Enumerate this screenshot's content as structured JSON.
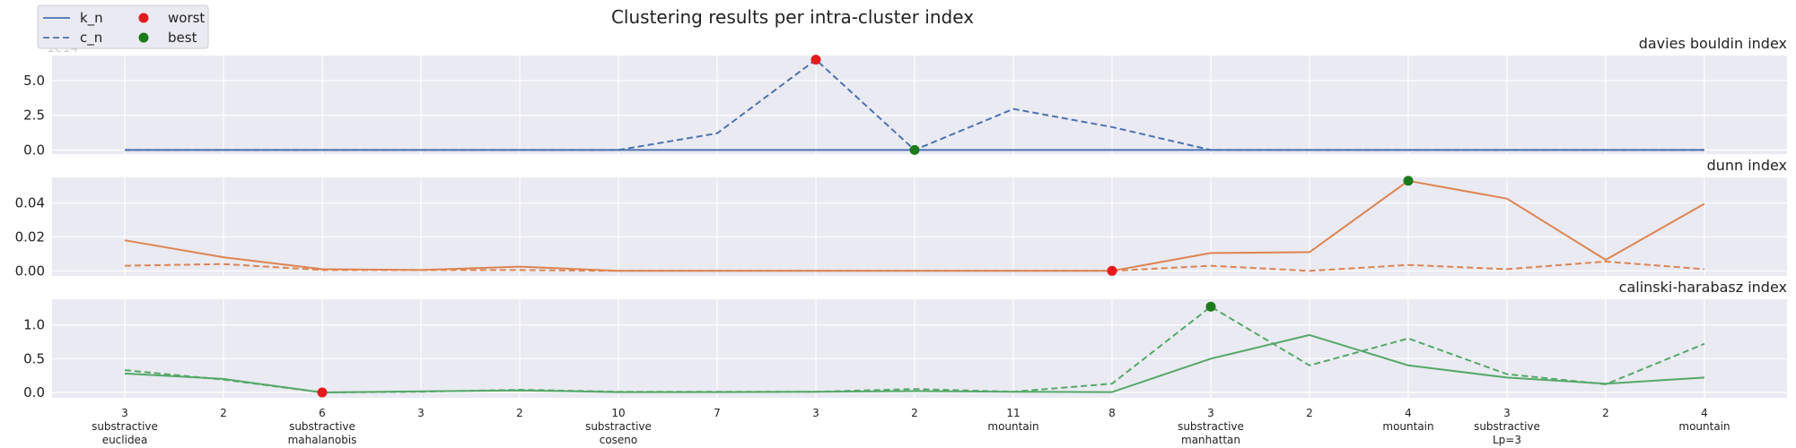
{
  "chart_data": {
    "type": "line",
    "title": "Clustering results per intra-cluster index",
    "legend": {
      "placement": "top-left",
      "entries": [
        {
          "label": "k_n",
          "style": "solid line"
        },
        {
          "label": "c_n",
          "style": "dashed line"
        },
        {
          "label": "worst",
          "style": "red dot",
          "color": "#e41a1c"
        },
        {
          "label": "best",
          "style": "green dot",
          "color": "#1b7a1b"
        }
      ]
    },
    "x_ticks": [
      [
        "3",
        "substractive",
        "euclidea"
      ],
      [
        "2"
      ],
      [
        "6",
        "substractive",
        "mahalanobis"
      ],
      [
        "3"
      ],
      [
        "2"
      ],
      [
        "10",
        "substractive",
        "coseno"
      ],
      [
        "7"
      ],
      [
        "3"
      ],
      [
        "2"
      ],
      [
        "11",
        "mountain"
      ],
      [
        "8"
      ],
      [
        "3",
        "substractive",
        "manhattan"
      ],
      [
        "2"
      ],
      [
        "4",
        "mountain"
      ],
      [
        "3",
        "substractive",
        "Lp=3"
      ],
      [
        "2"
      ],
      [
        "4",
        "mountain"
      ]
    ],
    "grid": true,
    "panels": [
      {
        "subtitle": "davies bouldin index",
        "color": "#4c72b0",
        "offset_label": "1e14",
        "ylim": [
          -0.3,
          6.8
        ],
        "yticks": [
          0.0,
          2.5,
          5.0
        ],
        "ytick_labels": [
          "0.0",
          "2.5",
          "5.0"
        ],
        "series": [
          {
            "name": "k_n",
            "dash": false,
            "values": [
              0,
              0,
              0,
              0,
              0,
              0,
              0,
              0,
              0,
              0,
              0,
              0,
              0,
              0,
              0,
              0,
              0
            ]
          },
          {
            "name": "c_n",
            "dash": true,
            "values": [
              0,
              0,
              0,
              0,
              0,
              0,
              1.2,
              6.5,
              0,
              2.95,
              1.65,
              0,
              0,
              0,
              0,
              0,
              0
            ]
          }
        ],
        "worst": {
          "index": 7,
          "value": 6.5
        },
        "best": {
          "index": 8,
          "value": 0
        }
      },
      {
        "subtitle": "dunn index",
        "color": "#dd8452",
        "offset_label": "",
        "ylim": [
          -0.003,
          0.055
        ],
        "yticks": [
          0.0,
          0.02,
          0.04
        ],
        "ytick_labels": [
          "0.00",
          "0.02",
          "0.04"
        ],
        "series": [
          {
            "name": "k_n",
            "dash": false,
            "values": [
              0.018,
              0.008,
              0.001,
              0.0005,
              0.0025,
              0,
              0,
              0,
              0,
              0,
              0,
              0.0105,
              0.011,
              0.053,
              0.0425,
              0.0065,
              0.0395
            ]
          },
          {
            "name": "c_n",
            "dash": true,
            "values": [
              0.003,
              0.004,
              0.0005,
              0.0005,
              0.0005,
              0,
              0,
              0,
              0,
              0,
              0,
              0.003,
              0,
              0.0035,
              0.001,
              0.0055,
              0.001
            ]
          }
        ],
        "worst": {
          "index": 10,
          "value": 0
        },
        "best": {
          "index": 13,
          "value": 0.053
        }
      },
      {
        "subtitle": "calinski-harabasz index",
        "color": "#55a868",
        "offset_label": "",
        "ylim": [
          -0.08,
          1.38
        ],
        "yticks": [
          0.0,
          0.5,
          1.0
        ],
        "ytick_labels": [
          "0.0",
          "0.5",
          "1.0"
        ],
        "series": [
          {
            "name": "k_n",
            "dash": false,
            "values": [
              0.28,
              0.2,
              0,
              0.015,
              0.03,
              0.005,
              0.005,
              0.01,
              0.02,
              0.01,
              0.005,
              0.5,
              0.85,
              0.4,
              0.22,
              0.13,
              0.22
            ]
          },
          {
            "name": "c_n",
            "dash": true,
            "values": [
              0.33,
              0.19,
              0,
              0.01,
              0.04,
              0.01,
              0.01,
              0.01,
              0.05,
              0.01,
              0.13,
              1.27,
              0.4,
              0.8,
              0.27,
              0.12,
              0.72
            ]
          }
        ],
        "worst": {
          "index": 2,
          "value": 0
        },
        "best": {
          "index": 11,
          "value": 1.27
        }
      }
    ]
  }
}
